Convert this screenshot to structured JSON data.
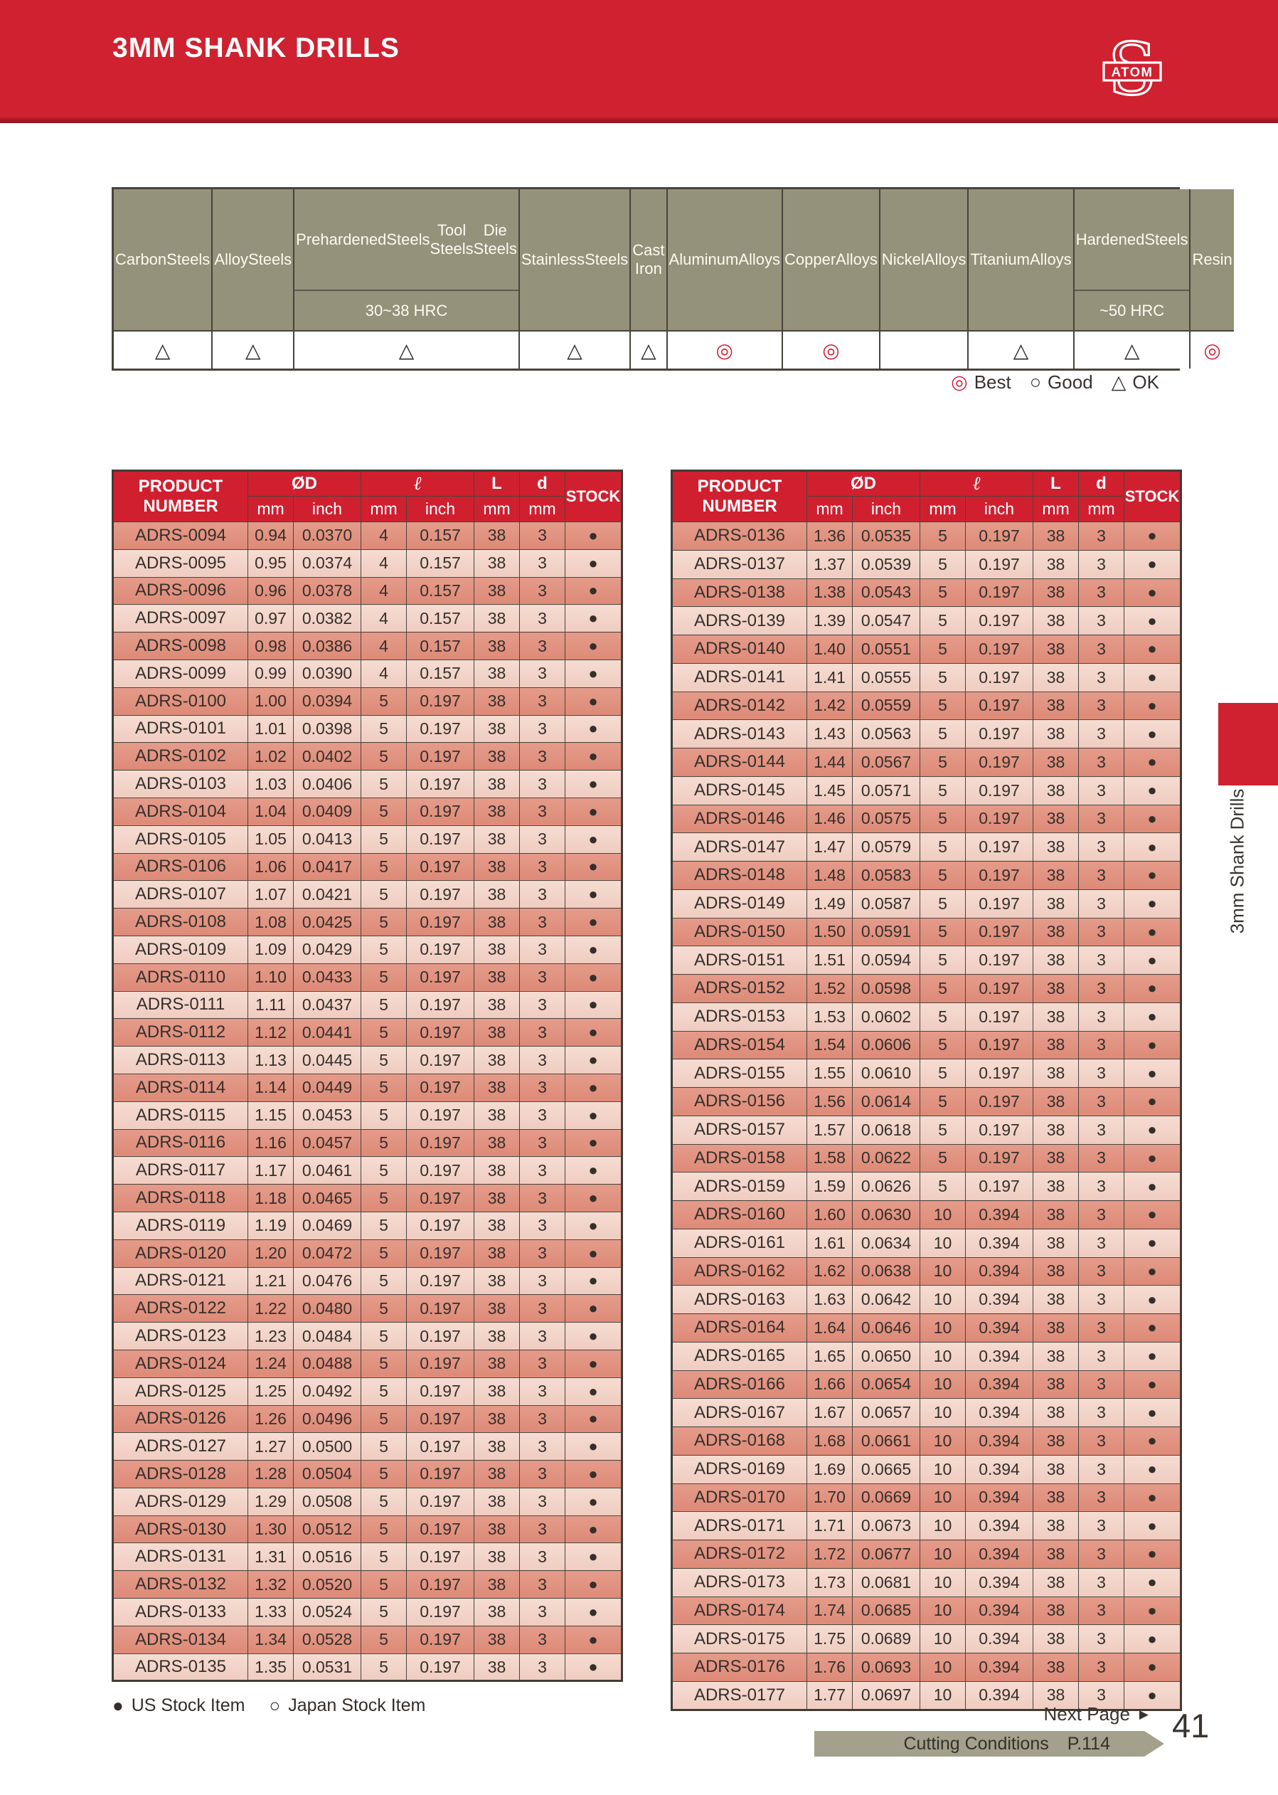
{
  "header": {
    "title": "3MM SHANK DRILLS",
    "logo_text": "ATOM"
  },
  "colors": {
    "red": "#cf2130",
    "olive": "#94927b",
    "row_dark": "#dd8a77",
    "row_light": "#f4d5ca",
    "best_symbol": "#d6213a"
  },
  "materials": {
    "columns": [
      {
        "lines": [
          "Carbon",
          "Steels"
        ],
        "sub": "",
        "rating": "ok"
      },
      {
        "lines": [
          "Alloy",
          "Steels"
        ],
        "sub": "",
        "rating": "ok"
      },
      {
        "lines": [
          "Prehardened",
          "Steels",
          "Tool Steels",
          "Die Steels"
        ],
        "sub": "30~38 HRC",
        "rating": "ok"
      },
      {
        "lines": [
          "Stainless",
          "Steels"
        ],
        "sub": "",
        "rating": "ok"
      },
      {
        "lines": [
          "Cast Iron"
        ],
        "sub": "",
        "rating": "ok"
      },
      {
        "lines": [
          "Aluminum",
          "Alloys"
        ],
        "sub": "",
        "rating": "best"
      },
      {
        "lines": [
          "Copper",
          "Alloys"
        ],
        "sub": "",
        "rating": "best"
      },
      {
        "lines": [
          "Nickel",
          "Alloys"
        ],
        "sub": "",
        "rating": "none"
      },
      {
        "lines": [
          "Titanium",
          "Alloys"
        ],
        "sub": "",
        "rating": "ok"
      },
      {
        "lines": [
          "Hardened",
          "Steels"
        ],
        "sub": "~50 HRC",
        "rating": "ok"
      },
      {
        "lines": [
          "Resin"
        ],
        "sub": "",
        "rating": "best"
      }
    ],
    "symbols": {
      "best": "◎",
      "good": "○",
      "ok": "△",
      "none": ""
    },
    "legend": [
      {
        "symbol": "◎",
        "label": "Best"
      },
      {
        "symbol": "○",
        "label": "Good"
      },
      {
        "symbol": "△",
        "label": "OK"
      }
    ]
  },
  "drill_table": {
    "header": {
      "product": "PRODUCT NUMBER",
      "od": "ØD",
      "shank_length": "ℓ",
      "overall_length": "L",
      "shank_dia": "d",
      "stock": "STOCK",
      "unit_mm": "mm",
      "unit_inch": "inch"
    },
    "left_rows": [
      [
        "ADRS-0094",
        "0.94",
        "0.0370",
        "4",
        "0.157",
        "38",
        "3",
        "●"
      ],
      [
        "ADRS-0095",
        "0.95",
        "0.0374",
        "4",
        "0.157",
        "38",
        "3",
        "●"
      ],
      [
        "ADRS-0096",
        "0.96",
        "0.0378",
        "4",
        "0.157",
        "38",
        "3",
        "●"
      ],
      [
        "ADRS-0097",
        "0.97",
        "0.0382",
        "4",
        "0.157",
        "38",
        "3",
        "●"
      ],
      [
        "ADRS-0098",
        "0.98",
        "0.0386",
        "4",
        "0.157",
        "38",
        "3",
        "●"
      ],
      [
        "ADRS-0099",
        "0.99",
        "0.0390",
        "4",
        "0.157",
        "38",
        "3",
        "●"
      ],
      [
        "ADRS-0100",
        "1.00",
        "0.0394",
        "5",
        "0.197",
        "38",
        "3",
        "●"
      ],
      [
        "ADRS-0101",
        "1.01",
        "0.0398",
        "5",
        "0.197",
        "38",
        "3",
        "●"
      ],
      [
        "ADRS-0102",
        "1.02",
        "0.0402",
        "5",
        "0.197",
        "38",
        "3",
        "●"
      ],
      [
        "ADRS-0103",
        "1.03",
        "0.0406",
        "5",
        "0.197",
        "38",
        "3",
        "●"
      ],
      [
        "ADRS-0104",
        "1.04",
        "0.0409",
        "5",
        "0.197",
        "38",
        "3",
        "●"
      ],
      [
        "ADRS-0105",
        "1.05",
        "0.0413",
        "5",
        "0.197",
        "38",
        "3",
        "●"
      ],
      [
        "ADRS-0106",
        "1.06",
        "0.0417",
        "5",
        "0.197",
        "38",
        "3",
        "●"
      ],
      [
        "ADRS-0107",
        "1.07",
        "0.0421",
        "5",
        "0.197",
        "38",
        "3",
        "●"
      ],
      [
        "ADRS-0108",
        "1.08",
        "0.0425",
        "5",
        "0.197",
        "38",
        "3",
        "●"
      ],
      [
        "ADRS-0109",
        "1.09",
        "0.0429",
        "5",
        "0.197",
        "38",
        "3",
        "●"
      ],
      [
        "ADRS-0110",
        "1.10",
        "0.0433",
        "5",
        "0.197",
        "38",
        "3",
        "●"
      ],
      [
        "ADRS-0111",
        "1.11",
        "0.0437",
        "5",
        "0.197",
        "38",
        "3",
        "●"
      ],
      [
        "ADRS-0112",
        "1.12",
        "0.0441",
        "5",
        "0.197",
        "38",
        "3",
        "●"
      ],
      [
        "ADRS-0113",
        "1.13",
        "0.0445",
        "5",
        "0.197",
        "38",
        "3",
        "●"
      ],
      [
        "ADRS-0114",
        "1.14",
        "0.0449",
        "5",
        "0.197",
        "38",
        "3",
        "●"
      ],
      [
        "ADRS-0115",
        "1.15",
        "0.0453",
        "5",
        "0.197",
        "38",
        "3",
        "●"
      ],
      [
        "ADRS-0116",
        "1.16",
        "0.0457",
        "5",
        "0.197",
        "38",
        "3",
        "●"
      ],
      [
        "ADRS-0117",
        "1.17",
        "0.0461",
        "5",
        "0.197",
        "38",
        "3",
        "●"
      ],
      [
        "ADRS-0118",
        "1.18",
        "0.0465",
        "5",
        "0.197",
        "38",
        "3",
        "●"
      ],
      [
        "ADRS-0119",
        "1.19",
        "0.0469",
        "5",
        "0.197",
        "38",
        "3",
        "●"
      ],
      [
        "ADRS-0120",
        "1.20",
        "0.0472",
        "5",
        "0.197",
        "38",
        "3",
        "●"
      ],
      [
        "ADRS-0121",
        "1.21",
        "0.0476",
        "5",
        "0.197",
        "38",
        "3",
        "●"
      ],
      [
        "ADRS-0122",
        "1.22",
        "0.0480",
        "5",
        "0.197",
        "38",
        "3",
        "●"
      ],
      [
        "ADRS-0123",
        "1.23",
        "0.0484",
        "5",
        "0.197",
        "38",
        "3",
        "●"
      ],
      [
        "ADRS-0124",
        "1.24",
        "0.0488",
        "5",
        "0.197",
        "38",
        "3",
        "●"
      ],
      [
        "ADRS-0125",
        "1.25",
        "0.0492",
        "5",
        "0.197",
        "38",
        "3",
        "●"
      ],
      [
        "ADRS-0126",
        "1.26",
        "0.0496",
        "5",
        "0.197",
        "38",
        "3",
        "●"
      ],
      [
        "ADRS-0127",
        "1.27",
        "0.0500",
        "5",
        "0.197",
        "38",
        "3",
        "●"
      ],
      [
        "ADRS-0128",
        "1.28",
        "0.0504",
        "5",
        "0.197",
        "38",
        "3",
        "●"
      ],
      [
        "ADRS-0129",
        "1.29",
        "0.0508",
        "5",
        "0.197",
        "38",
        "3",
        "●"
      ],
      [
        "ADRS-0130",
        "1.30",
        "0.0512",
        "5",
        "0.197",
        "38",
        "3",
        "●"
      ],
      [
        "ADRS-0131",
        "1.31",
        "0.0516",
        "5",
        "0.197",
        "38",
        "3",
        "●"
      ],
      [
        "ADRS-0132",
        "1.32",
        "0.0520",
        "5",
        "0.197",
        "38",
        "3",
        "●"
      ],
      [
        "ADRS-0133",
        "1.33",
        "0.0524",
        "5",
        "0.197",
        "38",
        "3",
        "●"
      ],
      [
        "ADRS-0134",
        "1.34",
        "0.0528",
        "5",
        "0.197",
        "38",
        "3",
        "●"
      ],
      [
        "ADRS-0135",
        "1.35",
        "0.0531",
        "5",
        "0.197",
        "38",
        "3",
        "●"
      ]
    ],
    "right_rows": [
      [
        "ADRS-0136",
        "1.36",
        "0.0535",
        "5",
        "0.197",
        "38",
        "3",
        "●"
      ],
      [
        "ADRS-0137",
        "1.37",
        "0.0539",
        "5",
        "0.197",
        "38",
        "3",
        "●"
      ],
      [
        "ADRS-0138",
        "1.38",
        "0.0543",
        "5",
        "0.197",
        "38",
        "3",
        "●"
      ],
      [
        "ADRS-0139",
        "1.39",
        "0.0547",
        "5",
        "0.197",
        "38",
        "3",
        "●"
      ],
      [
        "ADRS-0140",
        "1.40",
        "0.0551",
        "5",
        "0.197",
        "38",
        "3",
        "●"
      ],
      [
        "ADRS-0141",
        "1.41",
        "0.0555",
        "5",
        "0.197",
        "38",
        "3",
        "●"
      ],
      [
        "ADRS-0142",
        "1.42",
        "0.0559",
        "5",
        "0.197",
        "38",
        "3",
        "●"
      ],
      [
        "ADRS-0143",
        "1.43",
        "0.0563",
        "5",
        "0.197",
        "38",
        "3",
        "●"
      ],
      [
        "ADRS-0144",
        "1.44",
        "0.0567",
        "5",
        "0.197",
        "38",
        "3",
        "●"
      ],
      [
        "ADRS-0145",
        "1.45",
        "0.0571",
        "5",
        "0.197",
        "38",
        "3",
        "●"
      ],
      [
        "ADRS-0146",
        "1.46",
        "0.0575",
        "5",
        "0.197",
        "38",
        "3",
        "●"
      ],
      [
        "ADRS-0147",
        "1.47",
        "0.0579",
        "5",
        "0.197",
        "38",
        "3",
        "●"
      ],
      [
        "ADRS-0148",
        "1.48",
        "0.0583",
        "5",
        "0.197",
        "38",
        "3",
        "●"
      ],
      [
        "ADRS-0149",
        "1.49",
        "0.0587",
        "5",
        "0.197",
        "38",
        "3",
        "●"
      ],
      [
        "ADRS-0150",
        "1.50",
        "0.0591",
        "5",
        "0.197",
        "38",
        "3",
        "●"
      ],
      [
        "ADRS-0151",
        "1.51",
        "0.0594",
        "5",
        "0.197",
        "38",
        "3",
        "●"
      ],
      [
        "ADRS-0152",
        "1.52",
        "0.0598",
        "5",
        "0.197",
        "38",
        "3",
        "●"
      ],
      [
        "ADRS-0153",
        "1.53",
        "0.0602",
        "5",
        "0.197",
        "38",
        "3",
        "●"
      ],
      [
        "ADRS-0154",
        "1.54",
        "0.0606",
        "5",
        "0.197",
        "38",
        "3",
        "●"
      ],
      [
        "ADRS-0155",
        "1.55",
        "0.0610",
        "5",
        "0.197",
        "38",
        "3",
        "●"
      ],
      [
        "ADRS-0156",
        "1.56",
        "0.0614",
        "5",
        "0.197",
        "38",
        "3",
        "●"
      ],
      [
        "ADRS-0157",
        "1.57",
        "0.0618",
        "5",
        "0.197",
        "38",
        "3",
        "●"
      ],
      [
        "ADRS-0158",
        "1.58",
        "0.0622",
        "5",
        "0.197",
        "38",
        "3",
        "●"
      ],
      [
        "ADRS-0159",
        "1.59",
        "0.0626",
        "5",
        "0.197",
        "38",
        "3",
        "●"
      ],
      [
        "ADRS-0160",
        "1.60",
        "0.0630",
        "10",
        "0.394",
        "38",
        "3",
        "●"
      ],
      [
        "ADRS-0161",
        "1.61",
        "0.0634",
        "10",
        "0.394",
        "38",
        "3",
        "●"
      ],
      [
        "ADRS-0162",
        "1.62",
        "0.0638",
        "10",
        "0.394",
        "38",
        "3",
        "●"
      ],
      [
        "ADRS-0163",
        "1.63",
        "0.0642",
        "10",
        "0.394",
        "38",
        "3",
        "●"
      ],
      [
        "ADRS-0164",
        "1.64",
        "0.0646",
        "10",
        "0.394",
        "38",
        "3",
        "●"
      ],
      [
        "ADRS-0165",
        "1.65",
        "0.0650",
        "10",
        "0.394",
        "38",
        "3",
        "●"
      ],
      [
        "ADRS-0166",
        "1.66",
        "0.0654",
        "10",
        "0.394",
        "38",
        "3",
        "●"
      ],
      [
        "ADRS-0167",
        "1.67",
        "0.0657",
        "10",
        "0.394",
        "38",
        "3",
        "●"
      ],
      [
        "ADRS-0168",
        "1.68",
        "0.0661",
        "10",
        "0.394",
        "38",
        "3",
        "●"
      ],
      [
        "ADRS-0169",
        "1.69",
        "0.0665",
        "10",
        "0.394",
        "38",
        "3",
        "●"
      ],
      [
        "ADRS-0170",
        "1.70",
        "0.0669",
        "10",
        "0.394",
        "38",
        "3",
        "●"
      ],
      [
        "ADRS-0171",
        "1.71",
        "0.0673",
        "10",
        "0.394",
        "38",
        "3",
        "●"
      ],
      [
        "ADRS-0172",
        "1.72",
        "0.0677",
        "10",
        "0.394",
        "38",
        "3",
        "●"
      ],
      [
        "ADRS-0173",
        "1.73",
        "0.0681",
        "10",
        "0.394",
        "38",
        "3",
        "●"
      ],
      [
        "ADRS-0174",
        "1.74",
        "0.0685",
        "10",
        "0.394",
        "38",
        "3",
        "●"
      ],
      [
        "ADRS-0175",
        "1.75",
        "0.0689",
        "10",
        "0.394",
        "38",
        "3",
        "●"
      ],
      [
        "ADRS-0176",
        "1.76",
        "0.0693",
        "10",
        "0.394",
        "38",
        "3",
        "●"
      ],
      [
        "ADRS-0177",
        "1.77",
        "0.0697",
        "10",
        "0.394",
        "38",
        "3",
        "●"
      ]
    ]
  },
  "stock_legend": [
    {
      "symbol": "●",
      "label": "US Stock Item"
    },
    {
      "symbol": "○",
      "label": "Japan Stock Item"
    }
  ],
  "footer": {
    "next_page": "Next Page",
    "next_page_icon": "▶",
    "page_number": "41",
    "cutting_conditions": "Cutting Conditions",
    "cutting_conditions_page": "P.114"
  },
  "side_tab": {
    "label": "3mm Shank Drills"
  }
}
